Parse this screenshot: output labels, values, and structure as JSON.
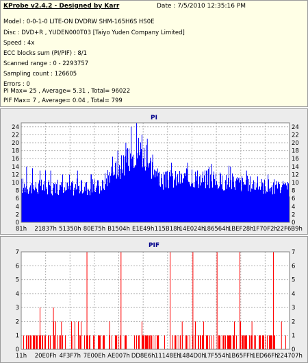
{
  "header": {
    "title": "KProbe v2.4.2 - Designed by Karr",
    "date": "Date : 7/5/2010 12:35:16 PM"
  },
  "info_lines": [
    "Model : 0-0-1-0 LITE-ON DVDRW SHM-165H6S HS0E",
    "Disc : DVD+R , YUDEN000T03 [Taiyo Yuden Company Limited]",
    "Speed : 4x",
    "ECC blocks sum (PI/PIF) : 8/1",
    "Scanned range : 0 - 2293757",
    "Sampling count : 126605",
    "Errors : 0",
    "PI Max= 25 , Average= 5.31 , Total= 96022",
    "PIF Max= 7 , Average= 0.04 , Total= 799"
  ],
  "colors": {
    "pi_bar": "#0000ff",
    "pif_bar": "#ff0000",
    "grid": "#b0b0b0",
    "plot_bg": "#ffffff",
    "panel_bg": "#ececec"
  },
  "chart_data": [
    {
      "type": "bar",
      "title": "PI",
      "ylim": [
        0,
        25
      ],
      "y_ticks": [
        0,
        2,
        4,
        6,
        8,
        10,
        12,
        14,
        16,
        18,
        20,
        22,
        24
      ],
      "x_tick_labels": [
        "81h",
        "21837h",
        "51350h",
        "80E75h",
        "B1504h",
        "E1E49h",
        "115B18h",
        "14E024h",
        "186564h",
        "1BEF28h",
        "1F70F2h",
        "22F6B9h"
      ],
      "profile": [
        [
          0,
          9.5
        ],
        [
          0.08,
          9
        ],
        [
          0.16,
          8.8
        ],
        [
          0.24,
          9
        ],
        [
          0.3,
          9.2
        ],
        [
          0.33,
          13
        ],
        [
          0.38,
          14.5
        ],
        [
          0.4,
          16
        ],
        [
          0.42,
          18
        ],
        [
          0.44,
          19
        ],
        [
          0.46,
          17
        ],
        [
          0.48,
          15
        ],
        [
          0.5,
          12
        ],
        [
          0.52,
          10.5
        ],
        [
          0.55,
          11
        ],
        [
          0.65,
          11.5
        ],
        [
          0.75,
          10.5
        ],
        [
          0.85,
          10
        ],
        [
          0.95,
          9
        ],
        [
          1,
          8.5
        ]
      ],
      "spikes": [
        [
          0.02,
          14
        ],
        [
          0.07,
          13
        ],
        [
          0.11,
          13
        ],
        [
          0.18,
          12
        ],
        [
          0.21,
          13
        ],
        [
          0.26,
          12
        ],
        [
          0.36,
          18
        ],
        [
          0.39,
          20
        ],
        [
          0.41,
          24
        ],
        [
          0.43,
          25
        ],
        [
          0.45,
          22
        ],
        [
          0.47,
          21
        ],
        [
          0.49,
          17
        ],
        [
          0.56,
          15
        ],
        [
          0.62,
          15
        ],
        [
          0.7,
          14
        ],
        [
          0.78,
          14
        ],
        [
          0.84,
          13
        ],
        [
          0.92,
          12
        ]
      ]
    },
    {
      "type": "bar",
      "title": "PIF",
      "ylim": [
        0,
        7
      ],
      "y_ticks": [
        0,
        1,
        2,
        3,
        4,
        5,
        6,
        7
      ],
      "x_tick_labels": [
        "11h",
        "20E0Fh",
        "4F3F7h",
        "7E00Eh",
        "AE007h",
        "DD8E6h",
        "11148Eh",
        "1484D0h",
        "17F554h",
        "1B65FFh",
        "1ED66Fh",
        "224707h"
      ],
      "spikes": [
        [
          0.245,
          7
        ],
        [
          0.372,
          7
        ],
        [
          0.555,
          7
        ],
        [
          0.64,
          7
        ],
        [
          0.73,
          7
        ],
        [
          0.815,
          7
        ],
        [
          0.94,
          7
        ],
        [
          0.07,
          3
        ],
        [
          0.12,
          3
        ],
        [
          0.15,
          2
        ],
        [
          0.2,
          2
        ],
        [
          0.33,
          2
        ],
        [
          0.45,
          2
        ],
        [
          0.6,
          2
        ],
        [
          0.68,
          2
        ],
        [
          0.86,
          2
        ],
        [
          0.97,
          2
        ]
      ]
    }
  ]
}
